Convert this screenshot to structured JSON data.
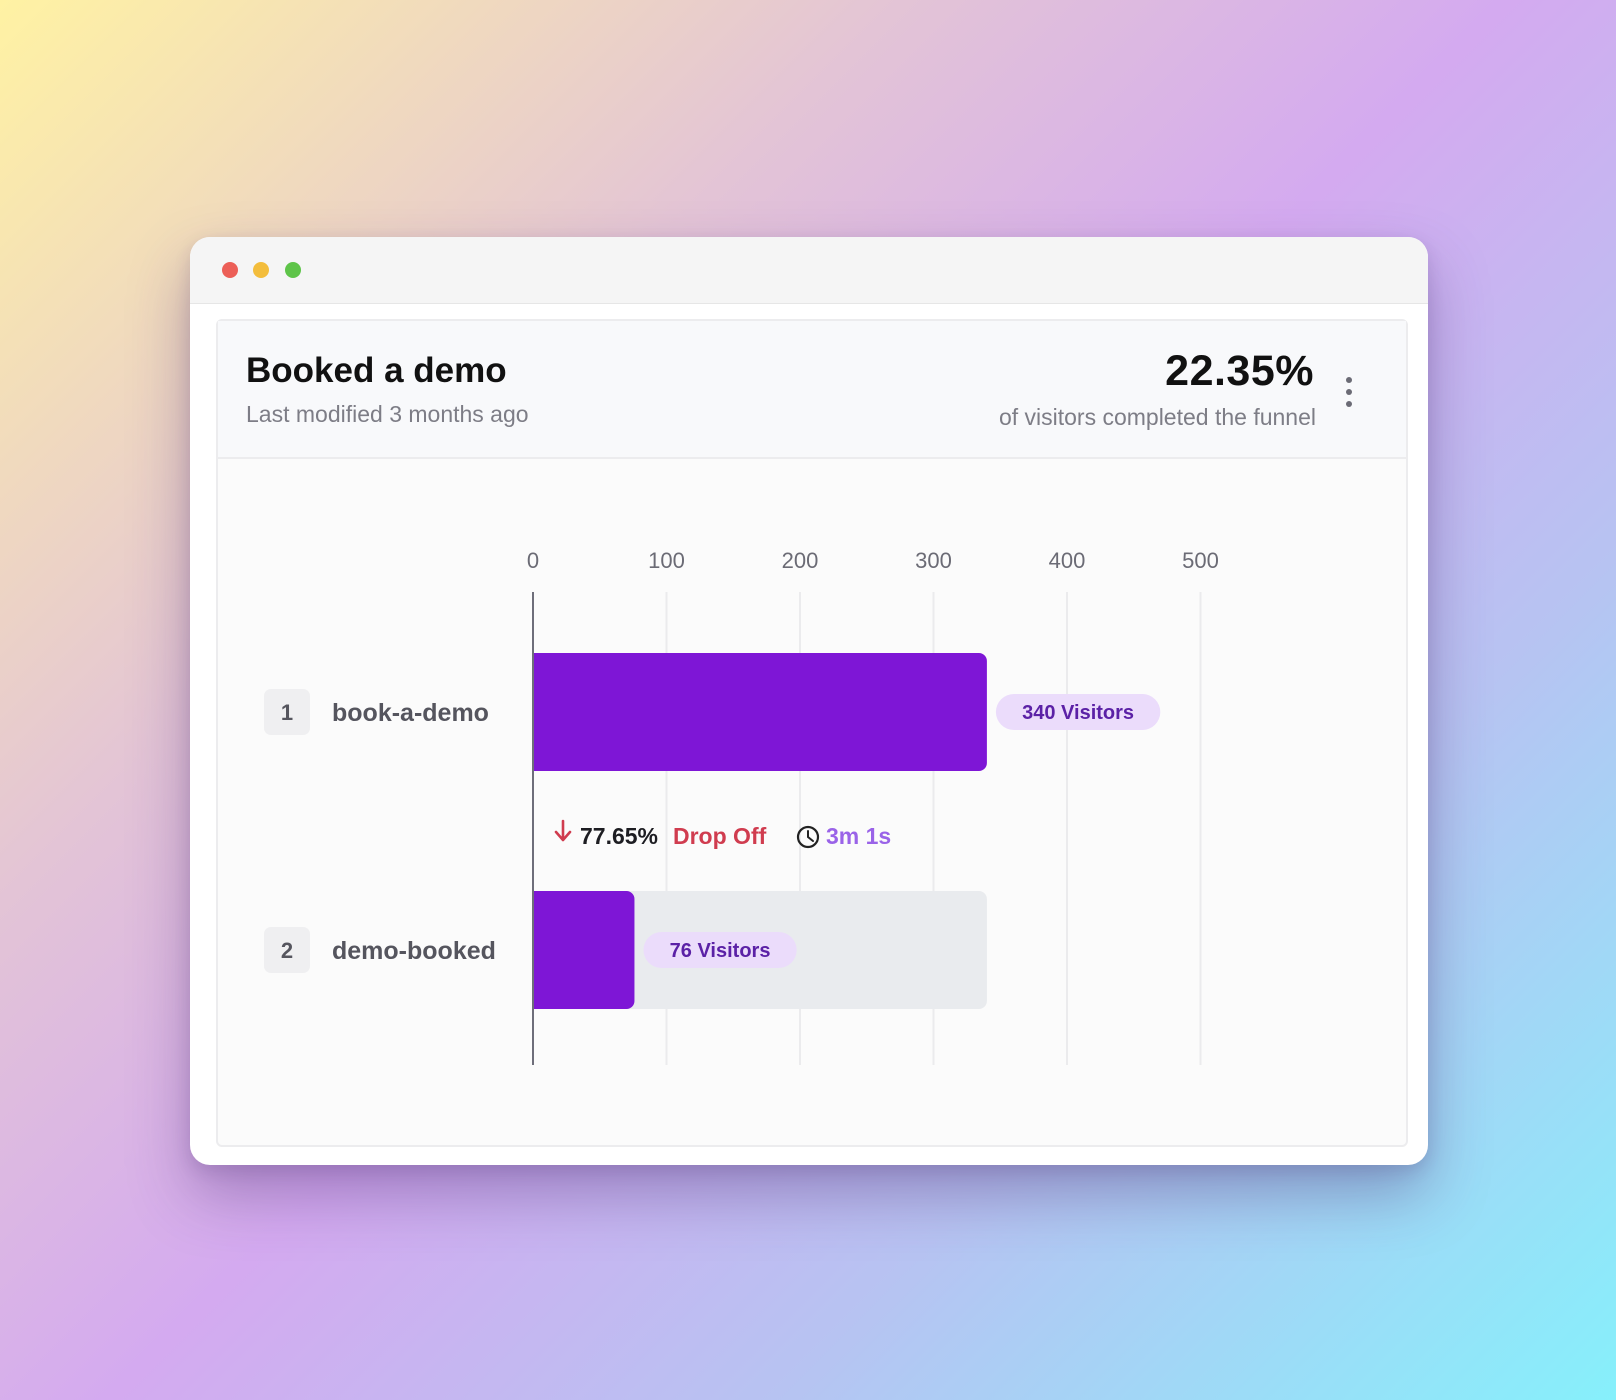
{
  "window": {
    "controls": [
      "close",
      "minimize",
      "maximize"
    ],
    "colors": {
      "close": "#ec5f57",
      "minimize": "#f3bd3c",
      "maximize": "#5ec449"
    }
  },
  "header": {
    "title": "Booked a demo",
    "subtitle": "Last modified 3 months ago",
    "completion_value": "22.35%",
    "completion_label": "of visitors completed the funnel",
    "menu_icon": "more-vertical-icon"
  },
  "colors": {
    "bar": "#7e16d6",
    "bar_track": "#e9ebee",
    "badge_bg": "#ebdcfb",
    "badge_text": "#5b21a6",
    "drop_text": "#d03c4f",
    "time_text": "#9a63e8"
  },
  "chart_data": {
    "type": "bar",
    "orientation": "horizontal",
    "categories": [
      "book-a-demo",
      "demo-booked"
    ],
    "step_numbers": [
      "1",
      "2"
    ],
    "values": [
      340,
      76
    ],
    "value_labels": [
      "340 Visitors",
      "76 Visitors"
    ],
    "xlim": [
      0,
      500
    ],
    "x_ticks": [
      0,
      100,
      200,
      300,
      400,
      500
    ],
    "tick_labels": [
      "0",
      "100",
      "200",
      "300",
      "400",
      "500"
    ],
    "grid": true,
    "transitions": [
      {
        "drop_pct": "77.65%",
        "drop_label": "Drop Off",
        "time": "3m 1s",
        "drop_icon": "arrow-down-icon",
        "time_icon": "clock-icon"
      }
    ]
  }
}
